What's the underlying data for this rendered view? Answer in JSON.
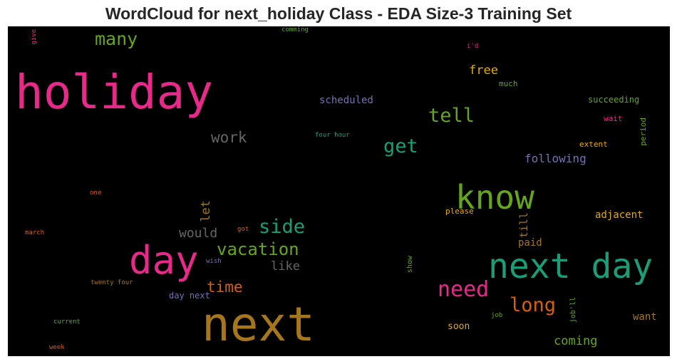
{
  "chart_data": {
    "type": "wordcloud",
    "title": "WordCloud for next_holiday Class - EDA Size-3 Training Set",
    "background": "#000000",
    "words": [
      {
        "text": "holiday",
        "color": "#e7298a"
      },
      {
        "text": "next",
        "color": "#a6761d"
      },
      {
        "text": "next day",
        "color": "#1b9e77"
      },
      {
        "text": "day",
        "color": "#e7298a"
      },
      {
        "text": "know",
        "color": "#66a61e"
      },
      {
        "text": "vacation",
        "color": "#66a61e"
      },
      {
        "text": "side",
        "color": "#1b9e77"
      },
      {
        "text": "tell",
        "color": "#66a61e"
      },
      {
        "text": "get",
        "color": "#1b9e77"
      },
      {
        "text": "need",
        "color": "#e7298a"
      },
      {
        "text": "long",
        "color": "#d95f02"
      },
      {
        "text": "many",
        "color": "#66a61e"
      },
      {
        "text": "time",
        "color": "#d95f02"
      },
      {
        "text": "work",
        "color": "#666666"
      },
      {
        "text": "would",
        "color": "#666666"
      },
      {
        "text": "like",
        "color": "#666666"
      },
      {
        "text": "free",
        "color": "#e6ab02"
      },
      {
        "text": "coming",
        "color": "#66a61e"
      },
      {
        "text": "following",
        "color": "#7570b3"
      },
      {
        "text": "let",
        "color": "#a6761d"
      },
      {
        "text": "scheduled",
        "color": "#7570b3"
      },
      {
        "text": "adjacent",
        "color": "#e6ab02"
      },
      {
        "text": "paid",
        "color": "#a6761d"
      },
      {
        "text": "till",
        "color": "#a6761d"
      },
      {
        "text": "want",
        "color": "#a6761d"
      },
      {
        "text": "soon",
        "color": "#e6ab02"
      },
      {
        "text": "succeeding",
        "color": "#66a61e"
      },
      {
        "text": "day next",
        "color": "#7570b3"
      },
      {
        "text": "much",
        "color": "#66a61e"
      },
      {
        "text": "wait",
        "color": "#e7298a"
      },
      {
        "text": "extent",
        "color": "#e6ab02"
      },
      {
        "text": "period",
        "color": "#66a61e"
      },
      {
        "text": "please",
        "color": "#e6ab02"
      },
      {
        "text": "show",
        "color": "#66a61e"
      },
      {
        "text": "job'll",
        "color": "#66a61e"
      },
      {
        "text": "job",
        "color": "#66a61e"
      },
      {
        "text": "four hour",
        "color": "#1b9e77"
      },
      {
        "text": "comming",
        "color": "#66a61e"
      },
      {
        "text": "i'd",
        "color": "#e7298a"
      },
      {
        "text": "give",
        "color": "#e7298a"
      },
      {
        "text": "one",
        "color": "#d95f02"
      },
      {
        "text": "march",
        "color": "#d95f02"
      },
      {
        "text": "got",
        "color": "#d95f02"
      },
      {
        "text": "wish",
        "color": "#7570b3"
      },
      {
        "text": "twenty four",
        "color": "#a6761d"
      },
      {
        "text": "current",
        "color": "#66a61e"
      },
      {
        "text": "week",
        "color": "#d95f02"
      }
    ]
  }
}
